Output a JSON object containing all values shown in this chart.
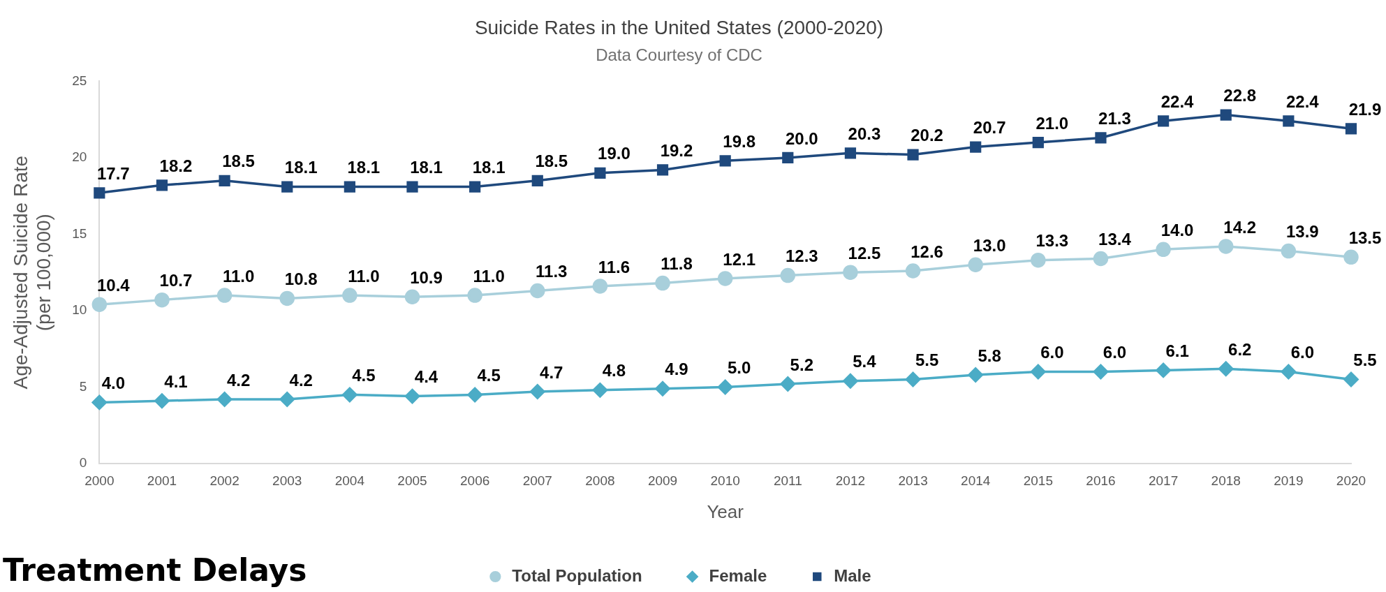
{
  "chart_data": {
    "type": "line",
    "title": "Suicide Rates in the United States (2000-2020)",
    "subtitle": "Data Courtesy of CDC",
    "xlabel": "Year",
    "ylabel": "Age-Adjusted Suicide Rate\n(per 100,000)",
    "categories": [
      "2000",
      "2001",
      "2002",
      "2003",
      "2004",
      "2005",
      "2006",
      "2007",
      "2008",
      "2009",
      "2010",
      "2011",
      "2012",
      "2013",
      "2014",
      "2015",
      "2016",
      "2017",
      "2018",
      "2019",
      "2020"
    ],
    "series": [
      {
        "name": "Total Population",
        "color": "#a8cfdb",
        "marker": "circle",
        "values": [
          10.4,
          10.7,
          11.0,
          10.8,
          11.0,
          10.9,
          11.0,
          11.3,
          11.6,
          11.8,
          12.1,
          12.3,
          12.5,
          12.6,
          13.0,
          13.3,
          13.4,
          14.0,
          14.2,
          13.9,
          13.5
        ],
        "value_labels": [
          "10.4",
          "10.7",
          "11.0",
          "10.8",
          "11.0",
          "10.9",
          "11.0",
          "11.3",
          "11.6",
          "11.8",
          "12.1",
          "12.3",
          "12.5",
          "12.6",
          "13.0",
          "13.3",
          "13.4",
          "14.0",
          "14.2",
          "13.9",
          "13.5"
        ]
      },
      {
        "name": "Female",
        "color": "#4bacc6",
        "marker": "diamond",
        "values": [
          4.0,
          4.1,
          4.2,
          4.2,
          4.5,
          4.4,
          4.5,
          4.7,
          4.8,
          4.9,
          5.0,
          5.2,
          5.4,
          5.5,
          5.8,
          6.0,
          6.0,
          6.1,
          6.2,
          6.0,
          5.5
        ],
        "value_labels": [
          "4.0",
          "4.1",
          "4.2",
          "4.2",
          "4.5",
          "4.4",
          "4.5",
          "4.7",
          "4.8",
          "4.9",
          "5.0",
          "5.2",
          "5.4",
          "5.5",
          "5.8",
          "6.0",
          "6.0",
          "6.1",
          "6.2",
          "6.0",
          "5.5"
        ]
      },
      {
        "name": "Male",
        "color": "#1f497d",
        "marker": "square",
        "values": [
          17.7,
          18.2,
          18.5,
          18.1,
          18.1,
          18.1,
          18.1,
          18.5,
          19.0,
          19.2,
          19.8,
          20.0,
          20.3,
          20.2,
          20.7,
          21.0,
          21.3,
          22.4,
          22.8,
          22.4,
          21.9
        ],
        "value_labels": [
          "17.7",
          "18.2",
          "18.5",
          "18.1",
          "18.1",
          "18.1",
          "18.1",
          "18.5",
          "19.0",
          "19.2",
          "19.8",
          "20.0",
          "20.3",
          "20.2",
          "20.7",
          "21.0",
          "21.3",
          "22.4",
          "22.8",
          "22.4",
          "21.9"
        ]
      }
    ],
    "ylim": [
      0,
      25
    ],
    "yticks": [
      0,
      5,
      10,
      15,
      20,
      25
    ],
    "grid": false,
    "legend": "bottom",
    "annotations": [
      "Treatment Delays"
    ]
  }
}
